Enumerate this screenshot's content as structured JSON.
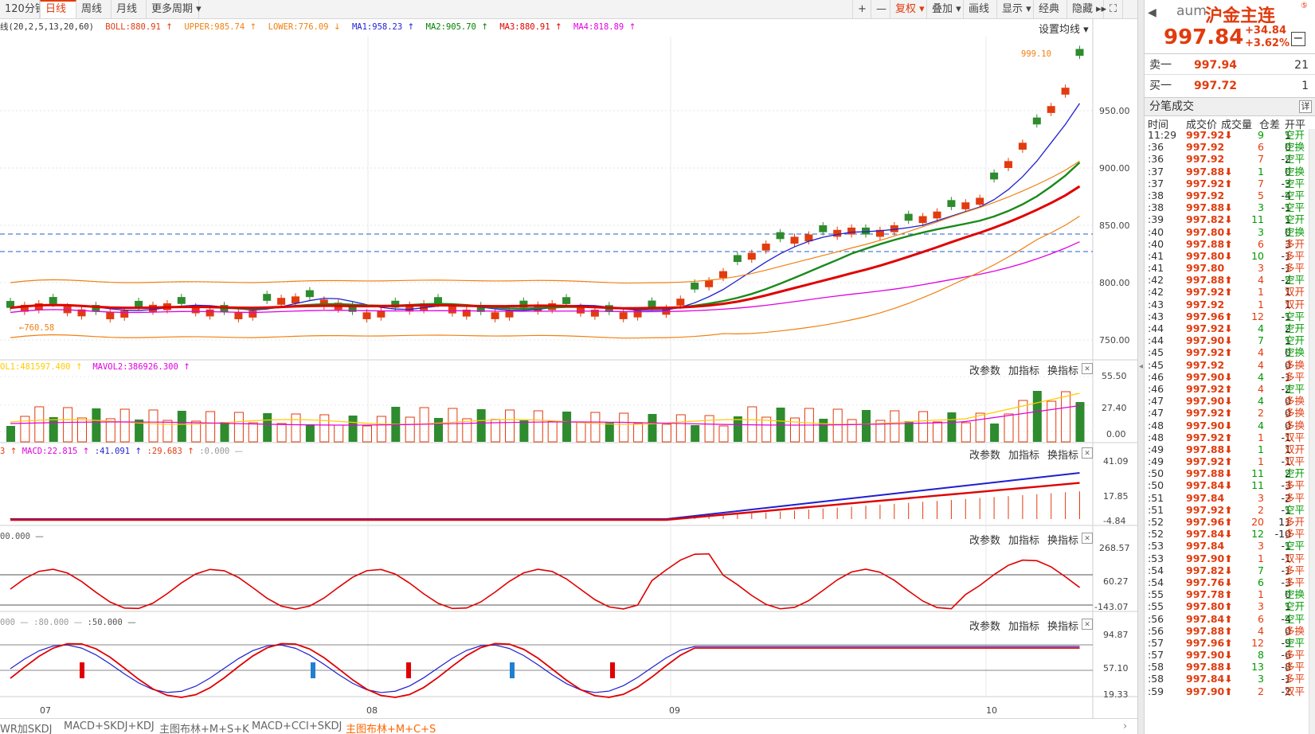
{
  "toolbar": {
    "period_tabs": [
      {
        "label": "120分钟"
      },
      {
        "label": "日线"
      },
      {
        "label": "周线"
      },
      {
        "label": "月线"
      },
      {
        "label": "更多周期 ▾"
      }
    ],
    "right_buttons": [
      {
        "label": "+"
      },
      {
        "label": "—"
      },
      {
        "label": "复权 ▾"
      },
      {
        "label": "叠加 ▾"
      },
      {
        "label": "画线"
      },
      {
        "label": "显示 ▾"
      },
      {
        "label": "经典"
      },
      {
        "label": "隐藏 ▸▸"
      },
      {
        "label": "⛶"
      }
    ]
  },
  "main_params": {
    "prefix": "线(20,2,5,13,20,60)",
    "items": [
      {
        "text": "BOLL:880.91",
        "arrow": "↑",
        "color": "#e23b0e"
      },
      {
        "text": "UPPER:985.74",
        "arrow": "↑",
        "color": "#f08010"
      },
      {
        "text": "LOWER:776.09",
        "arrow": "↓",
        "color": "#f08010"
      },
      {
        "text": "MA1:958.23",
        "arrow": "↑",
        "color": "#1f1fd0"
      },
      {
        "text": "MA2:905.70",
        "arrow": "↑",
        "color": "#008000"
      },
      {
        "text": "MA3:880.91",
        "arrow": "↑",
        "color": "#e00000"
      },
      {
        "text": "MA4:818.89",
        "arrow": "↑",
        "color": "#e000e0"
      }
    ],
    "set_ma_label": "设置均线 ▾"
  },
  "main_chart": {
    "price_axis": [
      "950.00",
      "900.00",
      "850.00",
      "800.00",
      "750.00"
    ],
    "max_label": "999.10",
    "min_label": "760.58",
    "date_labels": [
      "07",
      "08",
      "09",
      "10"
    ]
  },
  "sub_ops": [
    "改参数",
    "加指标",
    "换指标"
  ],
  "close_glyph": "✕",
  "vol_panel": {
    "header": [
      {
        "text": "OL1:481597.400",
        "arrow": "↑",
        "color": "#ffcc00"
      },
      {
        "text": "MAVOL2:386926.300",
        "arrow": "↑",
        "color": "#e000e0"
      }
    ],
    "axis": [
      "55.50",
      "27.40",
      "0.00"
    ]
  },
  "macd_panel": {
    "header": [
      {
        "text": "3",
        "arrow": "↑",
        "color": "#e23b0e"
      },
      {
        "text": "MACD:22.815",
        "arrow": "↑",
        "color": "#e000e0"
      },
      {
        "text": ":41.091",
        "arrow": "↑",
        "color": "#1f1fd0"
      },
      {
        "text": ":29.683",
        "arrow": "↑",
        "color": "#e23b0e"
      },
      {
        "text": ":0.000",
        "arrow": "—",
        "color": "#999999"
      }
    ],
    "axis": [
      "41.09",
      "17.85",
      "-4.84"
    ]
  },
  "cci_panel": {
    "header": [
      {
        "text": "00.000",
        "arrow": "—",
        "color": "#555555"
      }
    ],
    "axis": [
      "268.57",
      "60.27",
      "-143.07"
    ]
  },
  "kdj_panel": {
    "header": [
      {
        "text": "000",
        "arrow": "—",
        "color": "#999999"
      },
      {
        "text": ":80.000",
        "arrow": "—",
        "color": "#999999"
      },
      {
        "text": ":50.000",
        "arrow": "—",
        "color": "#555555"
      }
    ],
    "axis": [
      "94.87",
      "57.10",
      "19.33"
    ]
  },
  "bottom_tabs": [
    {
      "label": "WR加SKDJ",
      "active": false
    },
    {
      "label": "MACD+SKDJ+KDJ",
      "active": false
    },
    {
      "label": "主图布林+M+S+K",
      "active": false
    },
    {
      "label": "MACD+CCI+SKDJ",
      "active": false
    },
    {
      "label": "主图布林+M+C+S",
      "active": true
    }
  ],
  "quote": {
    "symbol": "aum",
    "name": "沪金主连",
    "price": "997.84",
    "change": "+34.84",
    "change_pct": "+3.62%",
    "minus": "−",
    "sell_label": "卖一",
    "sell_price": "997.94",
    "sell_vol": "21",
    "buy_label": "买一",
    "buy_price": "997.72",
    "buy_vol": "1"
  },
  "trades_panel": {
    "title": "分笔成交",
    "detail": "详",
    "cols": [
      "时间",
      "成交价",
      "成交量",
      "仓差",
      "开平"
    ],
    "rows": [
      [
        "11:29",
        "997.92⬇",
        "9",
        "1",
        "空开"
      ],
      [
        ":36",
        "997.92",
        "6",
        "0",
        "空换"
      ],
      [
        ":36",
        "997.92",
        "7",
        "-2",
        "空平"
      ],
      [
        ":37",
        "997.88⬇",
        "1",
        "0",
        "空换"
      ],
      [
        ":37",
        "997.92⬆",
        "7",
        "-3",
        "空平"
      ],
      [
        ":38",
        "997.92",
        "5",
        "-4",
        "空平"
      ],
      [
        ":38",
        "997.88⬇",
        "3",
        "-1",
        "空平"
      ],
      [
        ":39",
        "997.82⬇",
        "11",
        "1",
        "空开"
      ],
      [
        ":40",
        "997.80⬇",
        "3",
        "0",
        "空换"
      ],
      [
        ":40",
        "997.88⬆",
        "6",
        "3",
        "多开"
      ],
      [
        ":41",
        "997.80⬇",
        "10",
        "-1",
        "多平"
      ],
      [
        ":41",
        "997.80",
        "3",
        "-1",
        "多平"
      ],
      [
        ":42",
        "997.88⬆",
        "4",
        "-2",
        "空平"
      ],
      [
        ":42",
        "997.92⬆",
        "1",
        "1",
        "双开"
      ],
      [
        ":43",
        "997.92",
        "1",
        "1",
        "双开"
      ],
      [
        ":43",
        "997.96⬆",
        "12",
        "-1",
        "空平"
      ],
      [
        ":44",
        "997.92⬇",
        "4",
        "2",
        "空开"
      ],
      [
        ":44",
        "997.90⬇",
        "7",
        "1",
        "空开"
      ],
      [
        ":45",
        "997.92⬆",
        "4",
        "0",
        "空换"
      ],
      [
        ":45",
        "997.92",
        "4",
        "0",
        "多换"
      ],
      [
        ":46",
        "997.90⬇",
        "4",
        "-1",
        "多平"
      ],
      [
        ":46",
        "997.92⬆",
        "4",
        "-2",
        "空平"
      ],
      [
        ":47",
        "997.90⬇",
        "4",
        "0",
        "多换"
      ],
      [
        ":47",
        "997.92⬆",
        "2",
        "0",
        "多换"
      ],
      [
        ":48",
        "997.90⬇",
        "4",
        "0",
        "多换"
      ],
      [
        ":48",
        "997.92⬆",
        "1",
        "-1",
        "双平"
      ],
      [
        ":49",
        "997.88⬇",
        "1",
        "1",
        "双开"
      ],
      [
        ":49",
        "997.92⬆",
        "1",
        "-1",
        "双平"
      ],
      [
        ":50",
        "997.88⬇",
        "11",
        "2",
        "空开"
      ],
      [
        ":50",
        "997.84⬇",
        "11",
        "-3",
        "多平"
      ],
      [
        ":51",
        "997.84",
        "3",
        "-2",
        "多平"
      ],
      [
        ":51",
        "997.92⬆",
        "2",
        "-1",
        "空平"
      ],
      [
        ":52",
        "997.96⬆",
        "20",
        "11",
        "多开"
      ],
      [
        ":52",
        "997.84⬇",
        "12",
        "-10",
        "多平"
      ],
      [
        ":53",
        "997.84",
        "3",
        "-1",
        "空平"
      ],
      [
        ":53",
        "997.90⬆",
        "1",
        "-1",
        "双平"
      ],
      [
        ":54",
        "997.82⬇",
        "7",
        "-1",
        "多平"
      ],
      [
        ":54",
        "997.76⬇",
        "6",
        "-3",
        "多平"
      ],
      [
        ":55",
        "997.78⬆",
        "1",
        "0",
        "空换"
      ],
      [
        ":55",
        "997.80⬆",
        "3",
        "1",
        "空开"
      ],
      [
        ":56",
        "997.84⬆",
        "6",
        "-4",
        "空平"
      ],
      [
        ":56",
        "997.88⬆",
        "4",
        "0",
        "多换"
      ],
      [
        ":57",
        "997.96⬆",
        "12",
        "-9",
        "空平"
      ],
      [
        ":57",
        "997.90⬇",
        "8",
        "-6",
        "多平"
      ],
      [
        ":58",
        "997.88⬇",
        "13",
        "-8",
        "多平"
      ],
      [
        ":58",
        "997.84⬇",
        "3",
        "-1",
        "多平"
      ],
      [
        ":59",
        "997.90⬆",
        "2",
        "-2",
        "双平"
      ]
    ]
  }
}
